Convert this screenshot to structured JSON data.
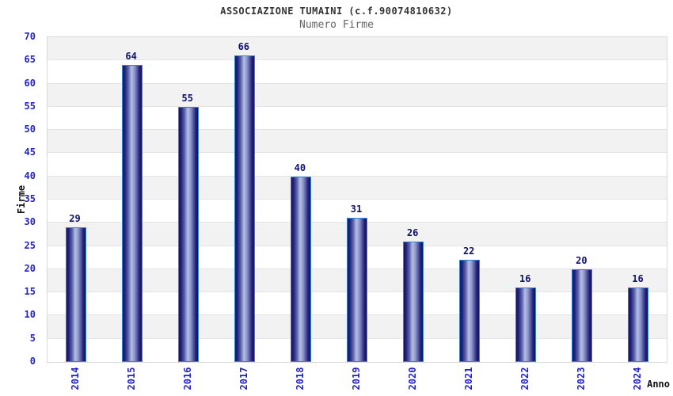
{
  "chart_data": {
    "type": "bar",
    "title": "ASSOCIAZIONE TUMAINI (c.f.90074810632)",
    "subtitle": "Numero Firme",
    "xlabel": "Anno",
    "ylabel": "Firme",
    "categories": [
      "2014",
      "2015",
      "2016",
      "2017",
      "2018",
      "2019",
      "2020",
      "2021",
      "2022",
      "2023",
      "2024"
    ],
    "values": [
      29,
      64,
      55,
      66,
      40,
      31,
      26,
      22,
      16,
      20,
      16
    ],
    "ylim": [
      0,
      70
    ],
    "ytick_step": 5,
    "yticks": [
      0,
      5,
      10,
      15,
      20,
      25,
      30,
      35,
      40,
      45,
      50,
      55,
      60,
      65,
      70
    ],
    "grid": "horizontal gridlines every 5 with alternating gray/white bands",
    "legend": "none",
    "value_labels": "above each bar"
  },
  "colors": {
    "tick_label": "#2222cc",
    "value_label": "#10106e",
    "bar_border": "#2e86d5",
    "bar_gradient_dark": "#13135c",
    "bar_gradient_light": "#b7bee6",
    "band_gray": "#f2f2f2",
    "plot_border": "#d9d9d9",
    "gridline": "#e4e4e4",
    "title": "#333333",
    "subtitle": "#666666",
    "axis_title": "#111111",
    "background": "#ffffff"
  }
}
